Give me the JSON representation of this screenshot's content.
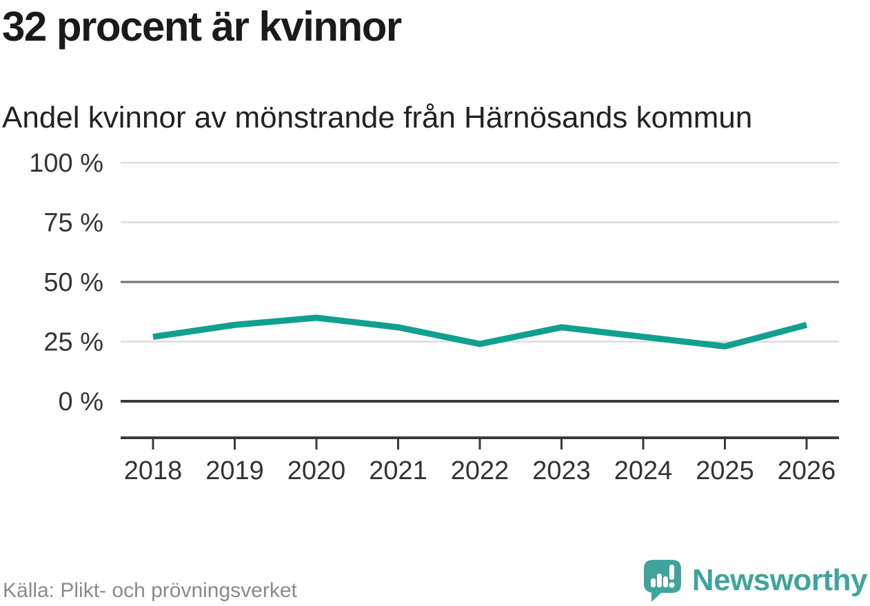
{
  "header": {
    "title": "32 procent är kvinnor",
    "subtitle": "Andel kvinnor av mönstrande från Härnösands kommun"
  },
  "chart_data": {
    "type": "line",
    "title": "32 procent är kvinnor",
    "subtitle": "Andel kvinnor av mönstrande från Härnösands kommun",
    "categories": [
      "2018",
      "2019",
      "2020",
      "2021",
      "2022",
      "2023",
      "2024",
      "2025",
      "2026"
    ],
    "series": [
      {
        "name": "Andel kvinnor av mönstrande",
        "values": [
          27,
          32,
          35,
          31,
          24,
          31,
          27,
          23,
          32
        ]
      }
    ],
    "unit": "%",
    "ylim": [
      0,
      100
    ],
    "yticks": [
      {
        "value": 0,
        "label": "0 %",
        "emphasis": "strong"
      },
      {
        "value": 25,
        "label": "25 %",
        "emphasis": "light"
      },
      {
        "value": 50,
        "label": "50 %",
        "emphasis": "medium"
      },
      {
        "value": 75,
        "label": "75 %",
        "emphasis": "light"
      },
      {
        "value": 100,
        "label": "100 %",
        "emphasis": "light"
      }
    ],
    "grid": "horizontal",
    "legend": "none",
    "line_color": "#11a08f"
  },
  "footer": {
    "source": "Källa: Plikt- och prövningsverket",
    "brand": "Newsworthy"
  },
  "colors": {
    "accent_line": "#11a08f",
    "grid_light": "#dcdcdc",
    "grid_medium": "#6f6f6f",
    "grid_strong": "#3a3a3a",
    "axis": "#3a3a3a",
    "axis_text": "#333333",
    "title_text": "#1a1a1a",
    "source_text": "#8a8a8a",
    "brand_teal": "#41a49c"
  }
}
